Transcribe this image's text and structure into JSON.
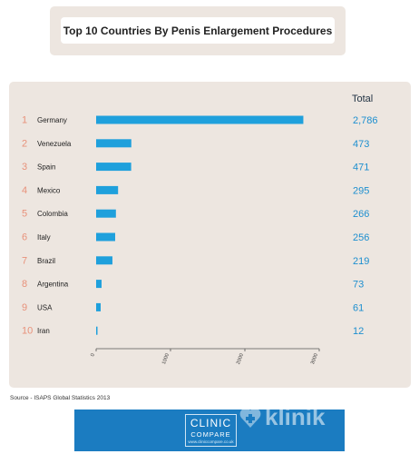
{
  "title": "Top 10 Countries By Penis Enlargement Procedures",
  "total_header": "Total",
  "source": "Source - ISAPS Global Statistics 2013",
  "footer": {
    "logo_line1": "CLINIC",
    "logo_line2": "COMPARE",
    "logo_line3": "www.cliniccompare.co.uk",
    "watermark": "klinik"
  },
  "colors": {
    "bar": "#1fa0dc",
    "rank": "#e8917a",
    "panel": "#ede6e0",
    "total": "#1d8fcf",
    "footer": "#1b7cc1"
  },
  "chart_data": {
    "type": "bar",
    "orientation": "horizontal",
    "categories": [
      "Germany",
      "Venezuela",
      "Spain",
      "Mexico",
      "Colombia",
      "Italy",
      "Brazil",
      "Argentina",
      "USA",
      "Iran"
    ],
    "ranks": [
      "1",
      "2",
      "3",
      "4",
      "5",
      "6",
      "7",
      "8",
      "9",
      "10"
    ],
    "values": [
      2786,
      473,
      471,
      295,
      266,
      256,
      219,
      73,
      61,
      12
    ],
    "value_labels": [
      "2,786",
      "473",
      "471",
      "295",
      "266",
      "256",
      "219",
      "73",
      "61",
      "12"
    ],
    "x_ticks": [
      "0",
      "1000",
      "2000",
      "3000"
    ],
    "xlim": [
      0,
      3000
    ],
    "grid": false,
    "title": "Top 10 Countries By Penis Enlargement Procedures"
  }
}
